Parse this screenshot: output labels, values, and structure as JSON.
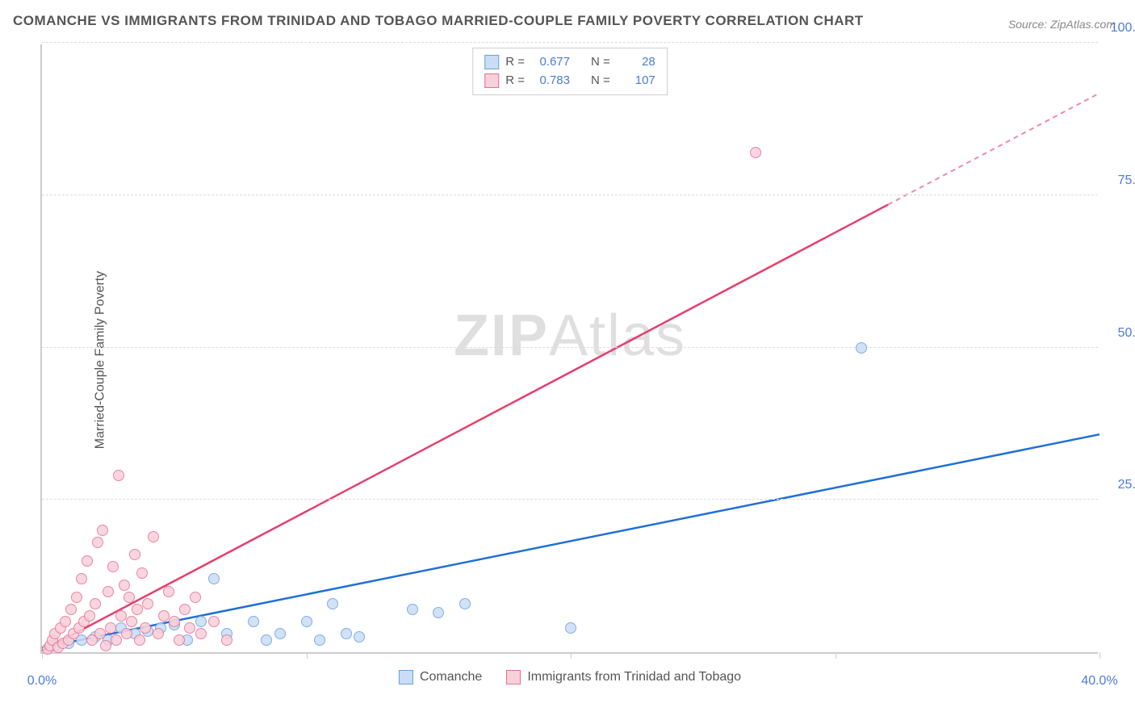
{
  "title": "COMANCHE VS IMMIGRANTS FROM TRINIDAD AND TOBAGO MARRIED-COUPLE FAMILY POVERTY CORRELATION CHART",
  "source": "Source: ZipAtlas.com",
  "watermark_zip": "ZIP",
  "watermark_atlas": "Atlas",
  "y_axis_title": "Married-Couple Family Poverty",
  "chart": {
    "type": "scatter",
    "xlim": [
      0,
      40
    ],
    "ylim": [
      0,
      100
    ],
    "x_ticks": [
      0,
      10,
      20,
      30,
      40
    ],
    "x_tick_labels": [
      "0.0%",
      "",
      "",
      "",
      "40.0%"
    ],
    "y_ticks": [
      25,
      50,
      75,
      100
    ],
    "y_tick_labels": [
      "25.0%",
      "50.0%",
      "75.0%",
      "100.0%"
    ],
    "background_color": "#ffffff",
    "grid_color": "#dddddd",
    "axis_color": "#cccccc",
    "tick_color": "#4b7bd6",
    "point_radius": 7,
    "series": [
      {
        "name": "Comanche",
        "label": "Comanche",
        "fill": "#c9ddf5",
        "stroke": "#6c9fe0",
        "line_color": "#1f6fd6",
        "r_value": "0.677",
        "n_value": "28",
        "trend": {
          "x1": 0,
          "y1": 1,
          "x2": 40,
          "y2": 36,
          "dash_from_x": 40
        },
        "points": [
          [
            0.5,
            1
          ],
          [
            1,
            1.5
          ],
          [
            1.5,
            2
          ],
          [
            2,
            2.5
          ],
          [
            2.5,
            2
          ],
          [
            3,
            4
          ],
          [
            3.5,
            3
          ],
          [
            4,
            3.5
          ],
          [
            4.5,
            4
          ],
          [
            5,
            4.5
          ],
          [
            5.5,
            2
          ],
          [
            6,
            5
          ],
          [
            6.5,
            12
          ],
          [
            7,
            3
          ],
          [
            8,
            5
          ],
          [
            8.5,
            2
          ],
          [
            9,
            3
          ],
          [
            10,
            5
          ],
          [
            10.5,
            2
          ],
          [
            11,
            8
          ],
          [
            11.5,
            3
          ],
          [
            12,
            2.5
          ],
          [
            14,
            7
          ],
          [
            15,
            6.5
          ],
          [
            16,
            8
          ],
          [
            20,
            4
          ],
          [
            31,
            50
          ]
        ]
      },
      {
        "name": "Immigrants from Trinidad and Tobago",
        "label": "Immigrants from Trinidad and Tobago",
        "fill": "#f8d0da",
        "stroke": "#e66f93",
        "line_color": "#e63e6d",
        "r_value": "0.783",
        "n_value": "107",
        "trend": {
          "x1": 0,
          "y1": 0.5,
          "x2": 40,
          "y2": 92,
          "dash_from_x": 32
        },
        "points": [
          [
            0.2,
            0.5
          ],
          [
            0.3,
            1
          ],
          [
            0.4,
            2
          ],
          [
            0.5,
            3
          ],
          [
            0.6,
            0.8
          ],
          [
            0.7,
            4
          ],
          [
            0.8,
            1.5
          ],
          [
            0.9,
            5
          ],
          [
            1.0,
            2
          ],
          [
            1.1,
            7
          ],
          [
            1.2,
            3
          ],
          [
            1.3,
            9
          ],
          [
            1.4,
            4
          ],
          [
            1.5,
            12
          ],
          [
            1.6,
            5
          ],
          [
            1.7,
            15
          ],
          [
            1.8,
            6
          ],
          [
            1.9,
            2
          ],
          [
            2.0,
            8
          ],
          [
            2.1,
            18
          ],
          [
            2.2,
            3
          ],
          [
            2.3,
            20
          ],
          [
            2.4,
            1
          ],
          [
            2.5,
            10
          ],
          [
            2.6,
            4
          ],
          [
            2.7,
            14
          ],
          [
            2.8,
            2
          ],
          [
            2.9,
            29
          ],
          [
            3.0,
            6
          ],
          [
            3.1,
            11
          ],
          [
            3.2,
            3
          ],
          [
            3.3,
            9
          ],
          [
            3.4,
            5
          ],
          [
            3.5,
            16
          ],
          [
            3.6,
            7
          ],
          [
            3.7,
            2
          ],
          [
            3.8,
            13
          ],
          [
            3.9,
            4
          ],
          [
            4.0,
            8
          ],
          [
            4.2,
            19
          ],
          [
            4.4,
            3
          ],
          [
            4.6,
            6
          ],
          [
            4.8,
            10
          ],
          [
            5.0,
            5
          ],
          [
            5.2,
            2
          ],
          [
            5.4,
            7
          ],
          [
            5.6,
            4
          ],
          [
            5.8,
            9
          ],
          [
            6.0,
            3
          ],
          [
            6.5,
            5
          ],
          [
            7.0,
            2
          ],
          [
            27,
            82
          ]
        ]
      }
    ],
    "stats_labels": {
      "r": "R =",
      "n": "N ="
    }
  }
}
